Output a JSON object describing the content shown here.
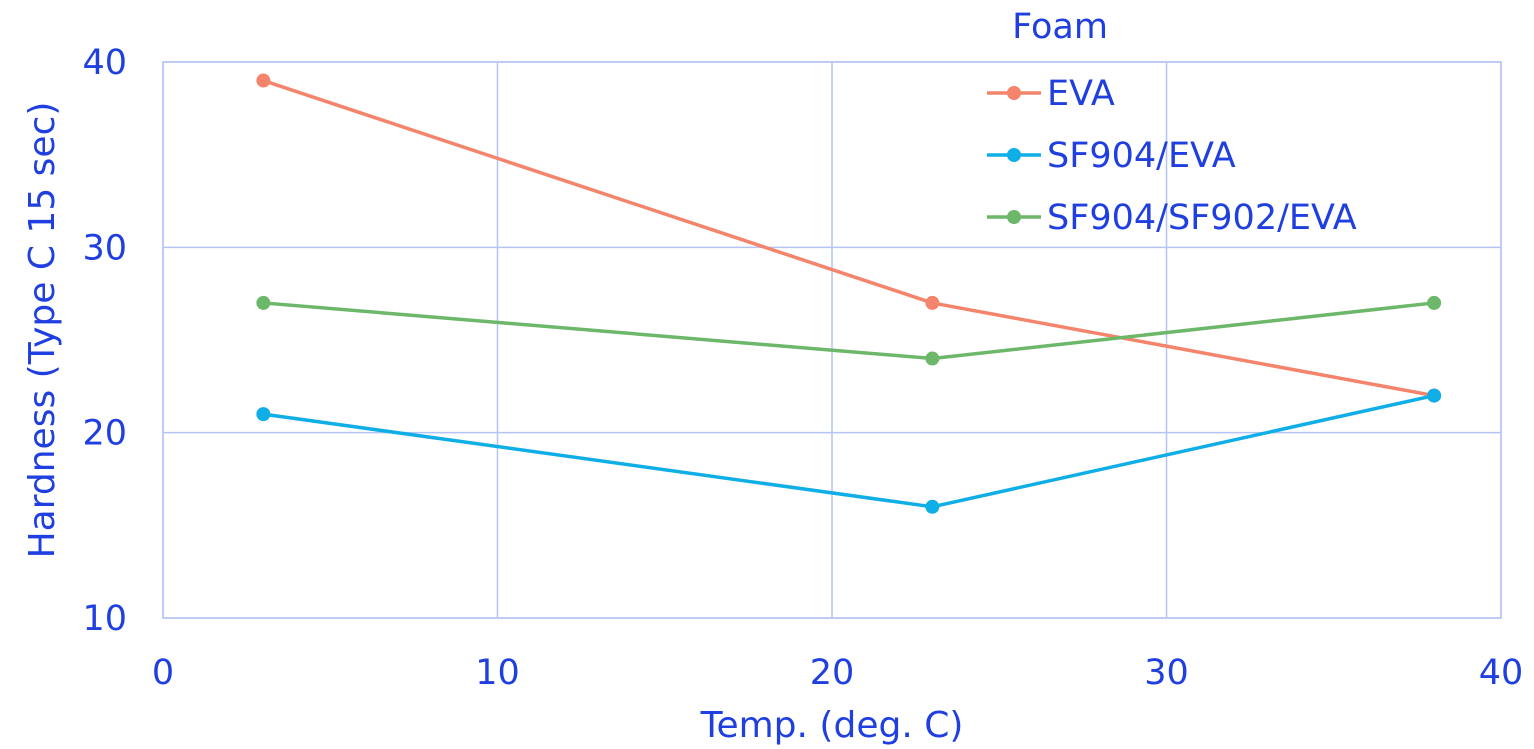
{
  "chart_data": {
    "type": "line",
    "xlabel": "Temp. (deg. C)",
    "ylabel": "Hardness (Type C 15 sec)",
    "xlim": [
      0,
      40
    ],
    "ylim": [
      10,
      40
    ],
    "xticks": [
      0,
      10,
      20,
      30,
      40
    ],
    "yticks": [
      10,
      20,
      30,
      40
    ],
    "grid": true,
    "legend": {
      "title": "Foam",
      "placement": "top-right"
    },
    "x": [
      3,
      23,
      38
    ],
    "series": [
      {
        "name": "EVA",
        "values": [
          39,
          27,
          22
        ],
        "color": "#F4846B"
      },
      {
        "name": "SF904/EVA",
        "values": [
          21,
          16,
          22
        ],
        "color": "#0FAEE6"
      },
      {
        "name": "SF904/SF902/EVA",
        "values": [
          27,
          24,
          27
        ],
        "color": "#6DB76A"
      }
    ]
  },
  "colors": {
    "text": "#1F3FE0",
    "grid": "#B4C4F4"
  }
}
